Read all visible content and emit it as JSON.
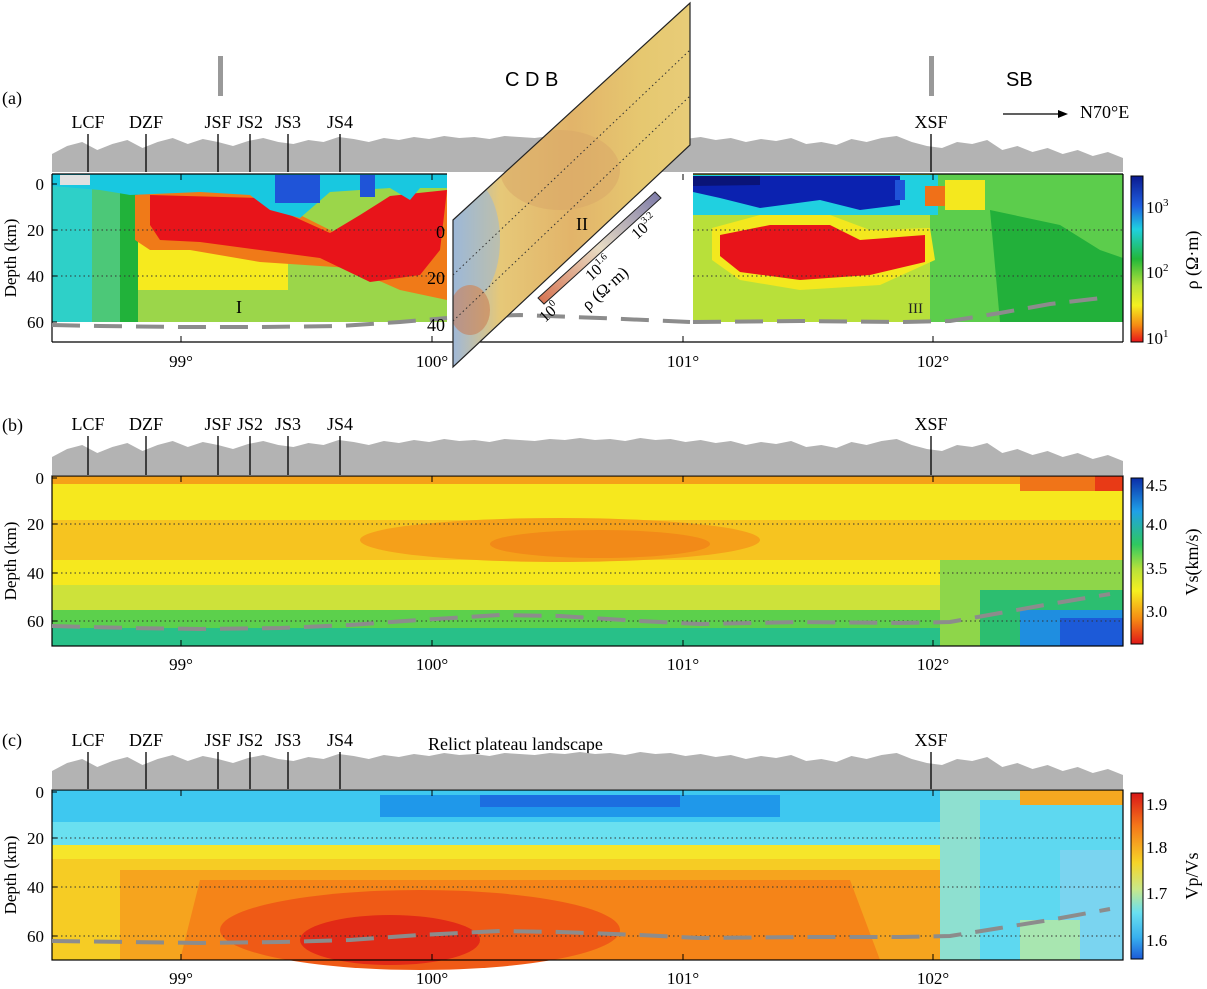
{
  "panels": [
    {
      "id": "a",
      "label": "(a)",
      "colorbar_label": "ρ (Ω·m)",
      "colorbar_ticks": [
        "10",
        "10",
        "10"
      ],
      "colorbar_exps": [
        "3",
        "2",
        "1"
      ],
      "regions": [
        "I",
        "III"
      ]
    },
    {
      "id": "b",
      "label": "(b)",
      "colorbar_label": "Vs(km/s)",
      "colorbar_ticks": [
        "4.5",
        "4.0",
        "3.5",
        "3.0"
      ]
    },
    {
      "id": "c",
      "label": "(c)",
      "colorbar_label": "Vp/Vs",
      "colorbar_ticks": [
        "1.9",
        "1.8",
        "1.7",
        "1.6"
      ],
      "annotation": "Relict plateau landscape"
    }
  ],
  "faults": [
    "LCF",
    "DZF",
    "JSF",
    "JS2",
    "JS3",
    "JS4",
    "XSF"
  ],
  "depth_label": "Depth (km)",
  "depth_ticks": [
    "0",
    "20",
    "40",
    "60"
  ],
  "lon_ticks": [
    "99°",
    "100°",
    "101°",
    "102°"
  ],
  "blocks": {
    "cdb": "C D B",
    "sb": "SB"
  },
  "direction": "N70°E",
  "inset": {
    "region": "II",
    "depth_ticks": [
      "0",
      "20",
      "40"
    ],
    "cb_label": "ρ (Ω·m)",
    "cb_tick_base": [
      "10",
      "10",
      "10"
    ],
    "cb_tick_exps": [
      "0",
      "1.6",
      "3.2"
    ]
  },
  "colors": {
    "topo": "#b3b3b3",
    "moho": "#8c8c8c",
    "plane": "#e3c46a"
  }
}
